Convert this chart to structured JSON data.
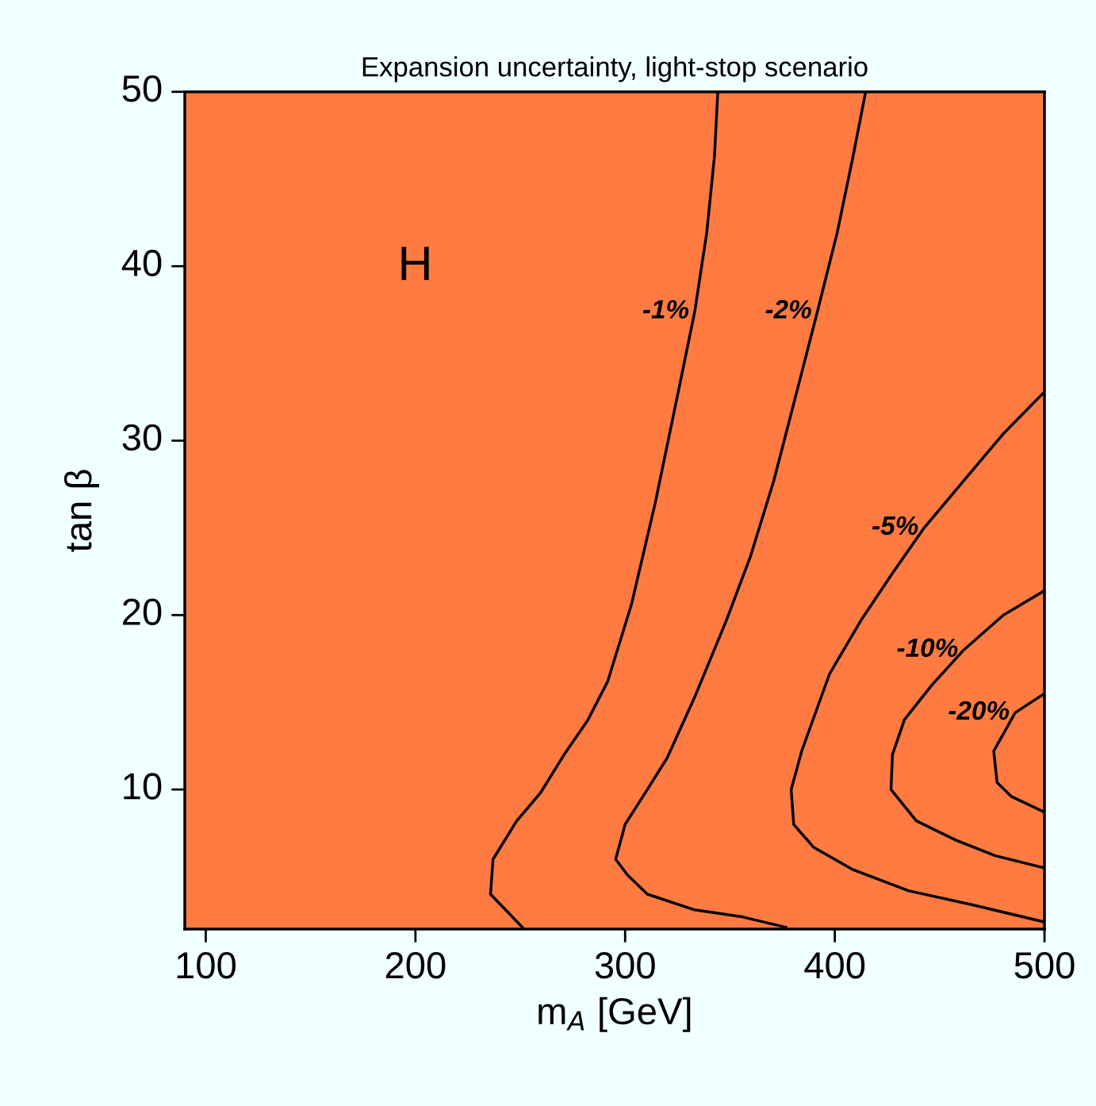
{
  "chart_data": {
    "type": "line",
    "title": "Expansion uncertainty, light-stop scenario",
    "xlabel": "m$_{A}$ [GeV]",
    "ylabel": "tan β",
    "xlim": [
      90,
      500
    ],
    "xticks": [
      100,
      200,
      300,
      400,
      500
    ],
    "ylim": [
      2,
      50
    ],
    "yticks": [
      10,
      20,
      30,
      40,
      50
    ],
    "grid": false,
    "legend": false,
    "marker": "none",
    "line_style": "solid",
    "bands": [
      {
        "axis": "x",
        "from": 90,
        "to": 500,
        "color": "#ff7b42"
      }
    ],
    "series": [
      {
        "name": "-1%",
        "color": "#000000",
        "x": [
          344.2,
          342.6,
          338.9,
          333.2,
          325.7,
          314.3,
          303.0,
          291.7,
          282.3,
          270.9,
          259.6,
          248.3,
          237.0,
          235.8,
          251.0
        ],
        "values": [
          50.0,
          46.3,
          41.9,
          37.4,
          33.0,
          26.4,
          20.6,
          16.2,
          14.0,
          12.0,
          9.8,
          8.2,
          6.0,
          4.0,
          2.1
        ]
      },
      {
        "name": "-2%",
        "color": "#000000",
        "x": [
          414.7,
          408.7,
          401.1,
          391.7,
          382.3,
          370.9,
          359.6,
          348.3,
          333.2,
          320.0,
          310.6,
          300.0,
          295.5,
          301.1,
          310.6,
          333.2,
          355.8,
          376.6
        ],
        "values": [
          50.0,
          46.3,
          41.9,
          37.4,
          33.0,
          27.7,
          23.3,
          19.7,
          15.3,
          11.8,
          10.0,
          8.0,
          6.0,
          5.1,
          4.0,
          3.1,
          2.7,
          2.1
        ]
      },
      {
        "name": "-5%",
        "color": "#000000",
        "x": [
          500,
          480.4,
          461.5,
          442.6,
          427.5,
          412.5,
          397.4,
          384.2,
          379.2,
          380.4,
          389.8,
          408.7,
          435.1,
          465.3,
          500
        ],
        "values": [
          32.8,
          30.4,
          27.7,
          25.0,
          22.4,
          19.7,
          16.6,
          12.2,
          10.0,
          8.0,
          6.7,
          5.4,
          4.2,
          3.4,
          2.4
        ]
      },
      {
        "name": "-10%",
        "color": "#000000",
        "x": [
          500,
          480.4,
          461.5,
          446.4,
          433.2,
          427.5,
          426.8,
          438.9,
          457.7,
          476.6,
          500
        ],
        "values": [
          21.4,
          20.0,
          18.0,
          16.0,
          14.0,
          12.0,
          10.0,
          8.2,
          7.1,
          6.2,
          5.5
        ]
      },
      {
        "name": "-20%",
        "color": "#000000",
        "x": [
          500,
          486.0,
          475.8,
          477.4,
          484.2,
          500
        ],
        "values": [
          15.5,
          14.4,
          12.2,
          10.4,
          9.6,
          8.7
        ]
      }
    ],
    "annotations": [
      "H"
    ]
  }
}
